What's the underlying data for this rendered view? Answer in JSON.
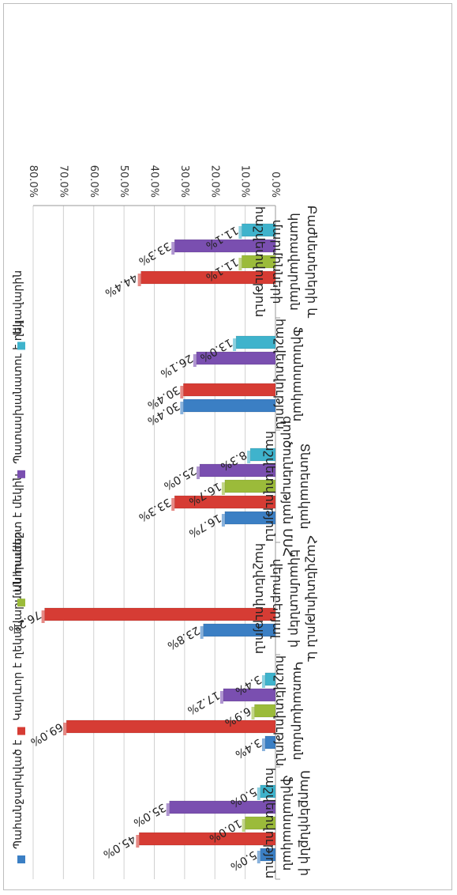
{
  "chart_data": {
    "type": "bar",
    "orientation": "rotated 180 degrees",
    "ylim": [
      0,
      80
    ],
    "y_ticks": [
      "0.0%",
      "10.0%",
      "20.0%",
      "30.0%",
      "40.0%",
      "50.0%",
      "60.0%",
      "70.0%",
      "80.0%"
    ],
    "grid": true,
    "legend_position": "right",
    "categories": [
      "Սարքերինքնի ի ֆինանսական հաշվետվություն",
      "Կառավարման հաշվետվություն",
      "Հաշվետվություն և եկամուտներ ի վերաբերյալ հաշվետվություն",
      "Տնտեսական գործունեության ՄՍՀ հաշվետվություն",
      "Ֆինանսական հաշվետվություն",
      "Բաժնետերերի և կառավարման մարմինների հաշվետվություն"
    ],
    "series": [
      {
        "name": "Պահանջարկված է",
        "color": "#3b7fc4",
        "values": [
          5.0,
          3.4,
          23.8,
          16.7,
          30.4,
          null
        ],
        "labels": [
          "5.0%",
          "3.4%",
          "23.8%",
          "16.7%",
          "30.4%",
          ""
        ]
      },
      {
        "name": "Կարևոր է ղեկավարման համար",
        "color": "#d63c34",
        "values": [
          45.0,
          69.0,
          76.2,
          33.3,
          30.4,
          44.4
        ],
        "labels": [
          "45.0%",
          "69.0%",
          "76.2%",
          "33.3%",
          "30.4%",
          "44.4%"
        ]
      },
      {
        "name": "Անհրաժեշտ է մեկին",
        "color": "#9bbb3a",
        "values": [
          10.0,
          6.9,
          null,
          16.7,
          null,
          11.1
        ],
        "labels": [
          "10.0%",
          "6.9%",
          "",
          "16.7%",
          "",
          "11.1%"
        ]
      },
      {
        "name": "Պատասխանատու է ղեկավարին",
        "color": "#7a4fb0",
        "values": [
          35.0,
          17.2,
          null,
          25.0,
          26.1,
          33.3
        ],
        "labels": [
          "35.0%",
          "17.2%",
          "",
          "25.0%",
          "26.1%",
          "33.3%"
        ]
      },
      {
        "name": "Այլ",
        "color": "#3fb3cc",
        "values": [
          5.0,
          3.4,
          null,
          8.3,
          13.0,
          11.1
        ],
        "labels": [
          "5.0%",
          "3.4%",
          "",
          "8.3%",
          "13.0%",
          "11.1%"
        ]
      }
    ]
  }
}
